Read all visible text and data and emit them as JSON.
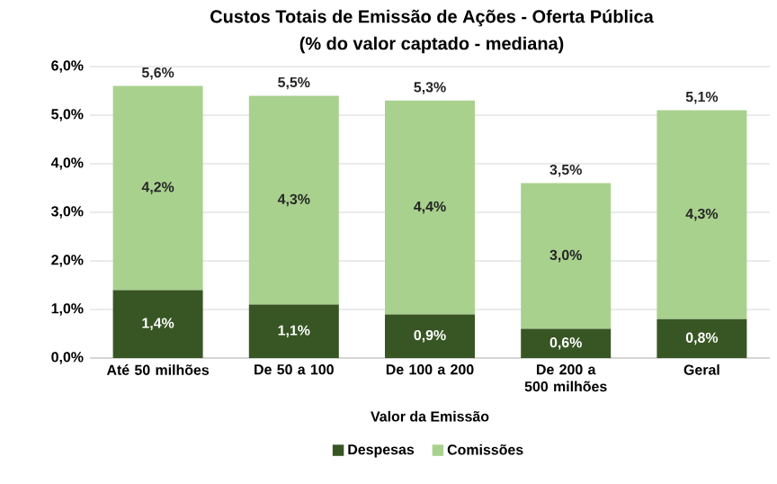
{
  "chart_data": {
    "type": "bar",
    "stacked": true,
    "title": "Custos Totais de Emissão de Ações - Oferta Pública",
    "subtitle": "(% do valor captado - mediana)",
    "xlabel": "Valor da Emissão",
    "categories": [
      "Até 50 milhões",
      "De 50 a 100",
      "De 100 a 200",
      "De 200 a 500 milhões",
      "Geral"
    ],
    "series": [
      {
        "name": "Despesas",
        "color": "#375623",
        "values": [
          1.4,
          1.1,
          0.9,
          0.6,
          0.8
        ],
        "value_labels": [
          "1,4%",
          "1,1%",
          "0,9%",
          "0,6%",
          "0,8%"
        ]
      },
      {
        "name": "Comissões",
        "color": "#a9d18e",
        "values": [
          4.2,
          4.3,
          4.4,
          3.0,
          4.3
        ],
        "value_labels": [
          "4,2%",
          "4,3%",
          "4,4%",
          "3,0%",
          "4,3%"
        ]
      }
    ],
    "totals": [
      "5,6%",
      "5,5%",
      "5,3%",
      "3,5%",
      "5,1%"
    ],
    "ylim": [
      0,
      6
    ],
    "yticks": [
      {
        "value": 0,
        "label": "0,0%"
      },
      {
        "value": 1,
        "label": "1,0%"
      },
      {
        "value": 2,
        "label": "2,0%"
      },
      {
        "value": 3,
        "label": "3,0%"
      },
      {
        "value": 4,
        "label": "4,0%"
      },
      {
        "value": 5,
        "label": "5,0%"
      },
      {
        "value": 6,
        "label": "6,0%"
      }
    ],
    "grid": "y",
    "legend": "bottom"
  }
}
